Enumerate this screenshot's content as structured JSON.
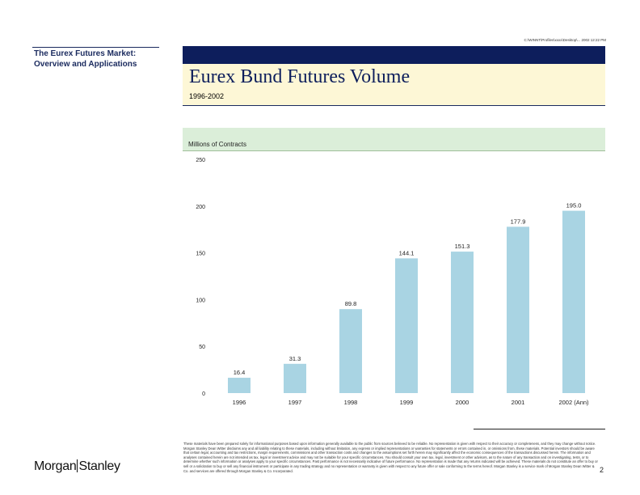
{
  "file_path_text": "C:\\WINNT\\Profiles\\xxxx\\Desktop\\...  2002 12:22 PM",
  "sidebar": {
    "title": "The Eurex Futures Market: Overview and Applications"
  },
  "header": {
    "title": "Eurex Bund Futures Volume",
    "subtitle": "1996-2002"
  },
  "colors": {
    "navy": "#0d1e5c",
    "title_band": "#fdf7d6",
    "units_band": "#dbeed9",
    "bar": "#a9d4e3"
  },
  "chart_data": {
    "type": "bar",
    "ylabel": "Millions of Contracts",
    "categories": [
      "1996",
      "1997",
      "1998",
      "1999",
      "2000",
      "2001",
      "2002 (Ann)"
    ],
    "values": [
      16.4,
      31.3,
      89.8,
      144.1,
      151.3,
      177.9,
      195.0
    ],
    "value_labels": [
      "16.4",
      "31.3",
      "89.8",
      "144.1",
      "151.3",
      "177.9",
      "195.0"
    ],
    "ylim": [
      0,
      250
    ],
    "yticks": [
      "0",
      "50",
      "100",
      "150",
      "200",
      "250"
    ],
    "grid": false,
    "legend": "none"
  },
  "footer": {
    "disclaimer": "These materials have been prepared solely for informational purposes based upon information generally available to the public from sources believed to be reliable. No representation is given with respect to their accuracy or completeness, and they may change without notice. Morgan Stanley Dean Witter disclaims any and all liability relating to these materials, including without limitation, any express or implied representations or warranties for statements or errors contained in, or omissions from, these materials. Potential investors should be aware that certain legal, accounting and tax restrictions, margin requirements, commissions and other transaction costs and changes to the assumptions set forth herein may significantly affect the economic consequences of the transactions discussed herein. The information and analyses contained herein are not intended as tax, legal or investment advice and may not be suitable for your specific circumstances. You should consult your own tax, legal, investment or other advisors, as to the nature of any transaction and on investigating, tests, or to determine whether such information or analyses apply to your specific circumstances. Past performance is not necessarily indicative of future performance. No representation is made that any returns indicated will be achieved. These materials do not constitute an offer to buy or sell or a solicitation to buy or sell any financial instrument or participate in any trading strategy and no representation or warranty is given with respect to any future offer or sale conforming to the terms hereof. Morgan Stanley is a service mark of Morgan Stanley Dean Witter & Co. and services are offered through Morgan Stanley & Co. Incorporated.",
    "page_number": "2",
    "logo_left": "Morgan",
    "logo_right": "Stanley"
  }
}
